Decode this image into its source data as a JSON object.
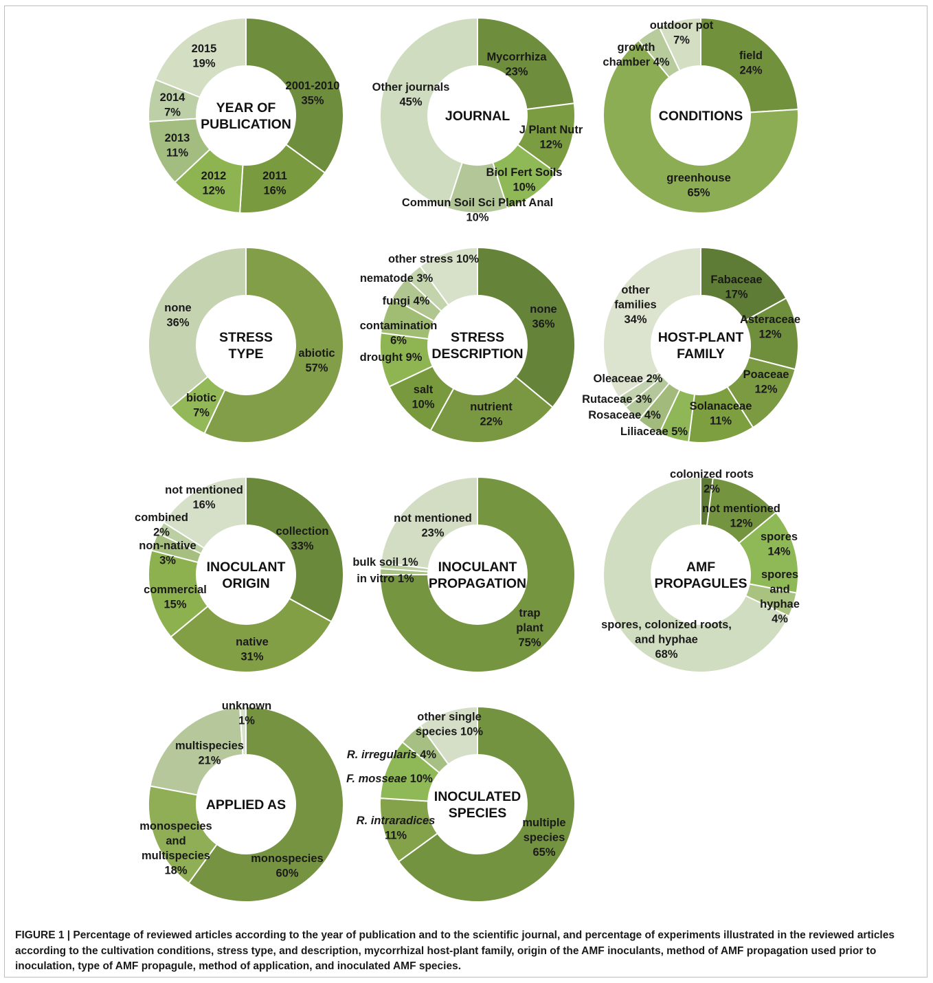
{
  "caption": "FIGURE 1 | Percentage of reviewed articles according to the year of publication and to the scientific journal, and percentage of experiments illustrated in the reviewed articles according to the cultivation conditions, stress type, and description, mycorrhizal host-plant family, origin of the AMF inoculants, method of AMF propagation used prior to inoculation, type of AMF propagule, method of application, and inoculated AMF species.",
  "chart_data": [
    {
      "type": "pie",
      "title": [
        "YEAR OF",
        "PUBLICATION"
      ],
      "slices": [
        {
          "label": [
            "2001-2010",
            "35%"
          ],
          "value": 35,
          "color": "#6e8d3d"
        },
        {
          "label": [
            "2011",
            "16%"
          ],
          "value": 16,
          "color": "#7a9a40"
        },
        {
          "label": [
            "2012",
            "12%"
          ],
          "value": 12,
          "color": "#8db450"
        },
        {
          "label": [
            "2013",
            "11%"
          ],
          "value": 11,
          "color": "#a3bc80"
        },
        {
          "label": [
            "2014",
            "7%"
          ],
          "value": 7,
          "color": "#bccfa7"
        },
        {
          "label": [
            "2015",
            "19%"
          ],
          "value": 19,
          "color": "#d3dec3"
        }
      ]
    },
    {
      "type": "pie",
      "title": [
        "JOURNAL"
      ],
      "slices": [
        {
          "label": [
            "Mycorrhiza",
            "23%"
          ],
          "value": 23,
          "color": "#6e8d3d"
        },
        {
          "label": [
            "J Plant Nutr",
            "12%"
          ],
          "value": 12,
          "color": "#7c9c41"
        },
        {
          "label": [
            "Biol Fert Soils",
            "10%"
          ],
          "value": 10,
          "color": "#8fb857"
        },
        {
          "label": [
            "Commun Soil Sci Plant Anal",
            "10%"
          ],
          "value": 10,
          "color": "#b2c697"
        },
        {
          "label": [
            "Other journals",
            "45%"
          ],
          "value": 45,
          "color": "#d0dcc0"
        }
      ]
    },
    {
      "type": "pie",
      "title": [
        "CONDITIONS"
      ],
      "slices": [
        {
          "label": [
            "field",
            "24%"
          ],
          "value": 24,
          "color": "#71913d"
        },
        {
          "label": [
            "greenhouse",
            "65%"
          ],
          "value": 65,
          "color": "#8dad55"
        },
        {
          "label": [
            "growth",
            "chamber 4%"
          ],
          "value": 4,
          "color": "#b8cb9d"
        },
        {
          "label": [
            "outdoor pot",
            "7%"
          ],
          "value": 7,
          "color": "#d3dec3"
        }
      ]
    },
    {
      "type": "pie",
      "title": [
        "STRESS",
        "TYPE"
      ],
      "slices": [
        {
          "label": [
            "abiotic",
            "57%"
          ],
          "value": 57,
          "color": "#829e48"
        },
        {
          "label": [
            "biotic",
            "7%"
          ],
          "value": 7,
          "color": "#93b858"
        },
        {
          "label": [
            "none",
            "36%"
          ],
          "value": 36,
          "color": "#c5d3b1"
        }
      ]
    },
    {
      "type": "pie",
      "title": [
        "STRESS",
        "DESCRIPTION"
      ],
      "slices": [
        {
          "label": [
            "none",
            "36%"
          ],
          "value": 36,
          "color": "#65843a"
        },
        {
          "label": [
            "nutrient",
            "22%"
          ],
          "value": 22,
          "color": "#7a9741"
        },
        {
          "label": [
            "salt",
            "10%"
          ],
          "value": 10,
          "color": "#79993f"
        },
        {
          "label": [
            "drought 9%"
          ],
          "value": 9,
          "color": "#8fb552"
        },
        {
          "label": [
            "contamination",
            "6%"
          ],
          "value": 6,
          "color": "#a0bd73"
        },
        {
          "label": [
            "fungi 4%"
          ],
          "value": 4,
          "color": "#b0c58f"
        },
        {
          "label": [
            "nematode 3%"
          ],
          "value": 3,
          "color": "#c3d3ab"
        },
        {
          "label": [
            "other stress 10%"
          ],
          "value": 10,
          "color": "#d7e1c9"
        }
      ]
    },
    {
      "type": "pie",
      "title": [
        "HOST-PLANT",
        "FAMILY"
      ],
      "slices": [
        {
          "label": [
            "Fabaceae",
            "17%"
          ],
          "value": 17,
          "color": "#5f7c36"
        },
        {
          "label": [
            "Asteraceae",
            "12%"
          ],
          "value": 12,
          "color": "#6f8f3d"
        },
        {
          "label": [
            "Poaceae",
            "12%"
          ],
          "value": 12,
          "color": "#7c9a42"
        },
        {
          "label": [
            "Solanaceae",
            "11%"
          ],
          "value": 11,
          "color": "#7d9f40"
        },
        {
          "label": [
            "Liliaceae 5%"
          ],
          "value": 5,
          "color": "#8fb757"
        },
        {
          "label": [
            "Rosaceae 4%"
          ],
          "value": 4,
          "color": "#a2bb7c"
        },
        {
          "label": [
            "Rutaceae 3%"
          ],
          "value": 3,
          "color": "#b4c79a"
        },
        {
          "label": [
            "Oleaceae 2%"
          ],
          "value": 2,
          "color": "#c3d2ae"
        },
        {
          "label": [
            "other",
            "families",
            "34%"
          ],
          "value": 34,
          "color": "#dce4cf"
        }
      ]
    },
    {
      "type": "pie",
      "title": [
        "INOCULANT",
        "ORIGIN"
      ],
      "slices": [
        {
          "label": [
            "collection",
            "33%"
          ],
          "value": 33,
          "color": "#6b893b"
        },
        {
          "label": [
            "native",
            "31%"
          ],
          "value": 31,
          "color": "#839f45"
        },
        {
          "label": [
            "commercial",
            "15%"
          ],
          "value": 15,
          "color": "#8db14f"
        },
        {
          "label": [
            "non-native",
            "3%"
          ],
          "value": 3,
          "color": "#a6bf80"
        },
        {
          "label": [
            "combined",
            "2%"
          ],
          "value": 2,
          "color": "#bccea3"
        },
        {
          "label": [
            "not mentioned",
            "16%"
          ],
          "value": 16,
          "color": "#d6e0c8"
        }
      ]
    },
    {
      "type": "pie",
      "title": [
        "INOCULANT",
        "PROPAGATION"
      ],
      "slices": [
        {
          "label": [
            "trap",
            "plant",
            "75%"
          ],
          "value": 75,
          "color": "#759541"
        },
        {
          "label": [
            "in vitro 1%"
          ],
          "value": 1,
          "color": "#a8c184"
        },
        {
          "label": [
            "bulk soil 1%"
          ],
          "value": 1,
          "color": "#bacda0"
        },
        {
          "label": [
            "not mentioned",
            "23%"
          ],
          "value": 23,
          "color": "#d3ddc4"
        }
      ]
    },
    {
      "type": "pie",
      "title": [
        "AMF",
        "PROPAGULES"
      ],
      "slices": [
        {
          "label": [
            "colonized roots",
            "2%"
          ],
          "value": 2,
          "color": "#5f7c36"
        },
        {
          "label": [
            "not mentioned",
            "12%"
          ],
          "value": 12,
          "color": "#749440"
        },
        {
          "label": [
            "spores",
            "14%"
          ],
          "value": 14,
          "color": "#8fb857"
        },
        {
          "label": [
            "spores",
            "and",
            "hyphae",
            "4%"
          ],
          "value": 4,
          "color": "#a9c27f"
        },
        {
          "label": [
            "spores, colonized roots,",
            "and hyphae",
            "68%"
          ],
          "value": 68,
          "color": "#d1ddc1"
        }
      ]
    },
    {
      "type": "pie",
      "title": [
        "APPLIED AS"
      ],
      "slices": [
        {
          "label": [
            "monospecies",
            "60%"
          ],
          "value": 60,
          "color": "#759341"
        },
        {
          "label": [
            "monospecies",
            "and",
            "multispecies",
            "18%"
          ],
          "value": 18,
          "color": "#8fae56"
        },
        {
          "label": [
            "multispecies",
            "21%"
          ],
          "value": 21,
          "color": "#b6c89b"
        },
        {
          "label": [
            "unknown",
            "1%"
          ],
          "value": 1,
          "color": "#d8e1cb"
        }
      ]
    },
    {
      "type": "pie",
      "title": [
        "INOCULATED",
        "SPECIES"
      ],
      "slices": [
        {
          "label": [
            "multiple",
            "species",
            "65%"
          ],
          "value": 65,
          "color": "#739340"
        },
        {
          "label": [
            "R. intraradices",
            "11%"
          ],
          "value": 11,
          "color": "#84a24a"
        },
        {
          "label": [
            "F. mosseae 10%"
          ],
          "value": 10,
          "color": "#8fb857"
        },
        {
          "label": [
            "R. irregularis 4%"
          ],
          "value": 4,
          "color": "#a6bf82"
        },
        {
          "label": [
            "other single",
            "species 10%"
          ],
          "value": 10,
          "color": "#d5dfc7"
        }
      ]
    }
  ]
}
